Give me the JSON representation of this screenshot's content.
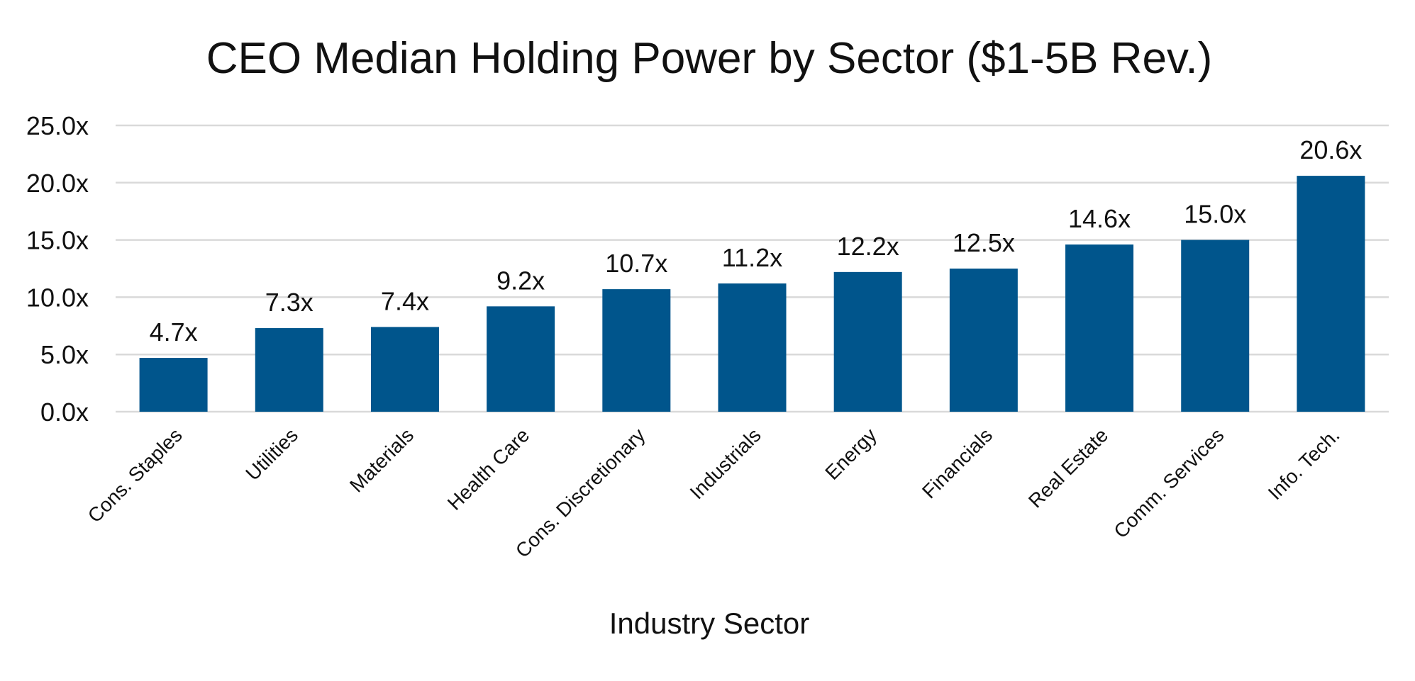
{
  "chart_data": {
    "type": "bar",
    "title": "CEO Median Holding Power by Sector ($1-5B Rev.)",
    "xlabel": "Industry Sector",
    "ylabel": "",
    "ylim": [
      0,
      25
    ],
    "yticks": [
      0,
      5,
      10,
      15,
      20,
      25
    ],
    "ytick_labels": [
      "0.0x",
      "5.0x",
      "10.0x",
      "15.0x",
      "20.0x",
      "25.0x"
    ],
    "grid": true,
    "legend": "none",
    "bar_color": "#00558C",
    "categories": [
      "Cons. Staples",
      "Utilities",
      "Materials",
      "Health Care",
      "Cons. Discretionary",
      "Industrials",
      "Energy",
      "Financials",
      "Real Estate",
      "Comm. Services",
      "Info. Tech."
    ],
    "values": [
      4.7,
      7.3,
      7.4,
      9.2,
      10.7,
      11.2,
      12.2,
      12.5,
      14.6,
      15.0,
      20.6
    ],
    "data_labels": [
      "4.7x",
      "7.3x",
      "7.4x",
      "9.2x",
      "10.7x",
      "11.2x",
      "12.2x",
      "12.5x",
      "14.6x",
      "15.0x",
      "20.6x"
    ]
  }
}
